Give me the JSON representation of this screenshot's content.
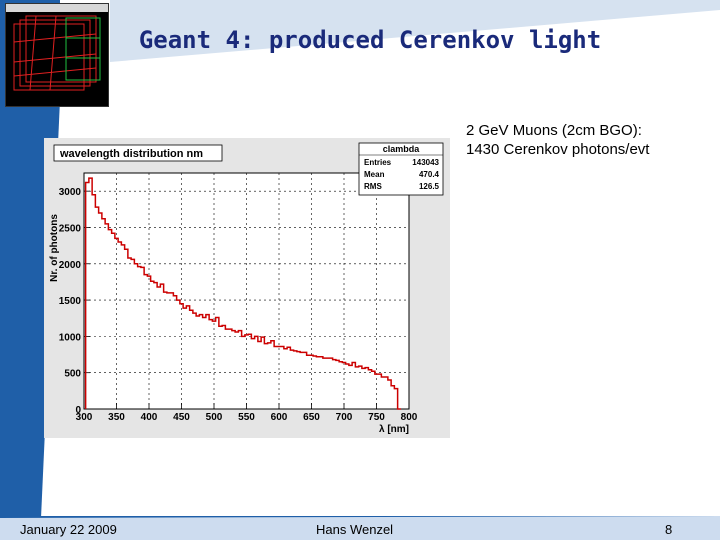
{
  "slide": {
    "title": "Geant 4: produced Cerenkov light",
    "subtitle_line1": "2 GeV Muons (2cm BGO):",
    "subtitle_line2": "1430 Cerenkov photons/evt",
    "footer_date": "January 22 2009",
    "footer_author": "Hans Wenzel",
    "page_number": "8",
    "colors": {
      "accent_blue": "#1f5fa8",
      "line_red": "#cc0000",
      "title_color": "#1a2a7a"
    }
  },
  "chart_data": {
    "type": "line",
    "title": "wavelength distribution nm",
    "xlabel": "λ [nm]",
    "ylabel": "Nr. of photons",
    "xlim": [
      300,
      800
    ],
    "ylim": [
      0,
      3250
    ],
    "xticks": [
      300,
      350,
      400,
      450,
      500,
      550,
      600,
      650,
      700,
      750,
      800
    ],
    "yticks": [
      0,
      500,
      1000,
      1500,
      2000,
      2500,
      3000
    ],
    "grid": true,
    "legend_position": "top-right",
    "stats": {
      "name": "clambda",
      "entries_label": "Entries",
      "entries": "143043",
      "mean_label": "Mean",
      "mean": "470.4",
      "rms_label": "RMS",
      "rms": "126.5"
    },
    "series": [
      {
        "x": [
          305,
          310,
          315,
          320,
          325,
          330,
          335,
          340,
          345,
          350,
          355,
          360,
          365,
          370,
          375,
          380,
          385,
          390,
          395,
          400,
          405,
          410,
          415,
          420,
          425,
          430,
          435,
          440,
          445,
          450,
          455,
          460,
          465,
          470,
          475,
          480,
          485,
          490,
          495,
          500,
          505,
          510,
          515,
          520,
          525,
          530,
          535,
          540,
          545,
          550,
          555,
          560,
          565,
          570,
          575,
          580,
          585,
          590,
          595,
          600,
          605,
          610,
          615,
          620,
          625,
          630,
          635,
          640,
          645,
          650,
          655,
          660,
          665,
          670,
          675,
          680,
          685,
          690,
          695,
          700,
          705,
          710,
          715,
          720,
          725,
          730,
          735,
          740,
          745,
          750,
          755,
          760,
          765,
          770,
          775,
          780,
          785
        ],
        "y": [
          3120,
          3180,
          2950,
          2780,
          2700,
          2620,
          2550,
          2470,
          2420,
          2350,
          2300,
          2260,
          2200,
          2080,
          2060,
          2000,
          1960,
          1950,
          1850,
          1830,
          1760,
          1740,
          1680,
          1720,
          1610,
          1600,
          1600,
          1560,
          1500,
          1450,
          1390,
          1420,
          1360,
          1320,
          1280,
          1300,
          1260,
          1300,
          1230,
          1210,
          1260,
          1140,
          1150,
          1100,
          1100,
          1080,
          1060,
          1080,
          1000,
          1020,
          1030,
          970,
          1000,
          930,
          990,
          900,
          910,
          940,
          860,
          860,
          860,
          830,
          850,
          810,
          800,
          790,
          780,
          780,
          740,
          740,
          730,
          720,
          720,
          700,
          700,
          700,
          680,
          670,
          650,
          640,
          620,
          600,
          640,
          580,
          590,
          560,
          570,
          540,
          520,
          480,
          480,
          440,
          440,
          400,
          320,
          280,
          0
        ]
      }
    ]
  }
}
